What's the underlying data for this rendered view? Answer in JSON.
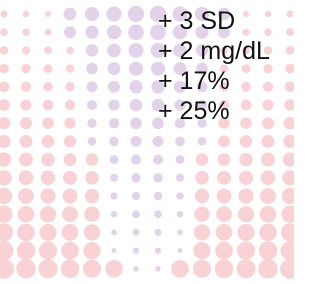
{
  "items": [
    "+ 3 SD",
    "+ 2 mg/dL",
    "+ 17%",
    "+ 25%"
  ]
}
